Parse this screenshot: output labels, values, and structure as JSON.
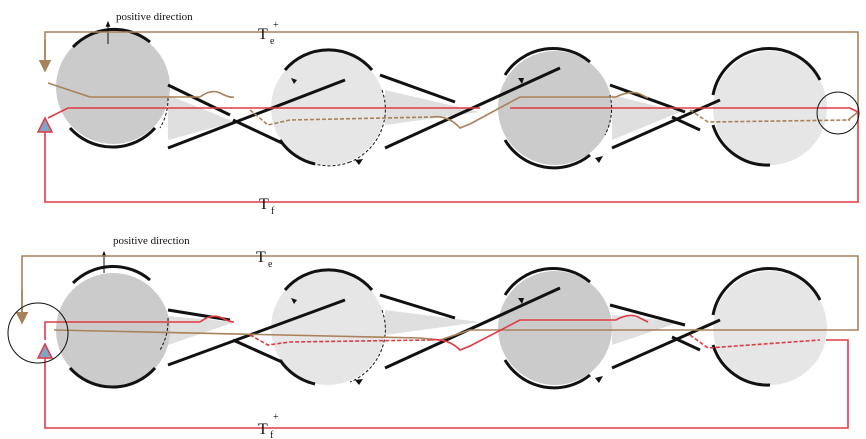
{
  "colors": {
    "tension_e": "#a8825a",
    "tension_f": "#e03a45",
    "pulley_dark": "#cbcbcb",
    "pulley_light": "#e6e6e6",
    "belt": "#111111",
    "marker_fill": "#7fa6c6"
  },
  "panels": [
    {
      "direction_label": "positive direction",
      "top_label": {
        "main": "T",
        "sub": "e",
        "sup": "+"
      },
      "bottom_label": {
        "main": "T",
        "sub": "f",
        "sup": ""
      },
      "highlighted_end": "right"
    },
    {
      "direction_label": "positive direction",
      "top_label": {
        "main": "T",
        "sub": "e",
        "sup": ""
      },
      "bottom_label": {
        "main": "T",
        "sub": "f",
        "sup": "+"
      },
      "highlighted_end": "left"
    }
  ]
}
